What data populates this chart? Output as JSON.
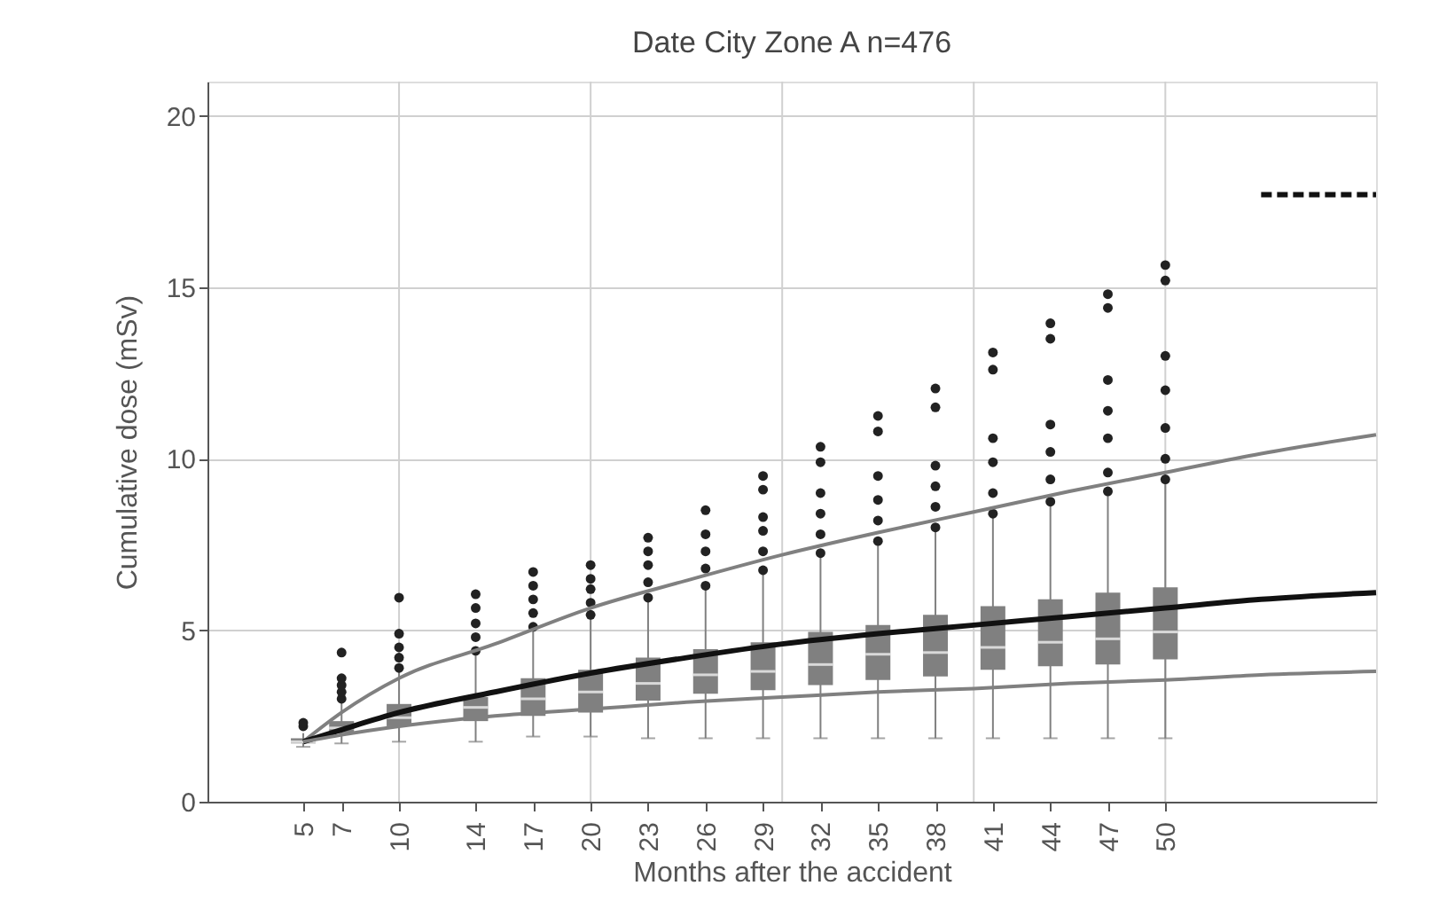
{
  "chart_data": {
    "type": "box",
    "title": "Date City Zone A n=476",
    "xlabel": "Months after the accident",
    "ylabel": "Cumulative dose (mSv)",
    "x": [
      5,
      7,
      10,
      14,
      17,
      20,
      23,
      26,
      29,
      32,
      35,
      38,
      41,
      44,
      47,
      50
    ],
    "xlim": [
      0,
      61
    ],
    "xticks": [
      5,
      7,
      10,
      14,
      17,
      20,
      23,
      26,
      29,
      32,
      35,
      38,
      41,
      44,
      47,
      50
    ],
    "ylim": [
      0,
      21
    ],
    "yticks": [
      0,
      5,
      10,
      15,
      20
    ],
    "grid": "y",
    "series": [
      {
        "color": "#808080",
        "boxes": [
          {
            "low": 1.6,
            "q1": 1.7,
            "median": 1.75,
            "q3": 1.85,
            "high": 2.0,
            "outliers": [
              2.2,
              2.3
            ]
          },
          {
            "low": 1.7,
            "q1": 2.0,
            "median": 2.15,
            "q3": 2.35,
            "high": 2.9,
            "outliers": [
              3.0,
              3.2,
              3.4,
              3.6,
              4.35
            ]
          },
          {
            "low": 1.75,
            "q1": 2.2,
            "median": 2.45,
            "q3": 2.85,
            "high": 3.8,
            "outliers": [
              3.9,
              4.2,
              4.5,
              4.9,
              5.95
            ]
          },
          {
            "low": 1.75,
            "q1": 2.35,
            "median": 2.75,
            "q3": 3.05,
            "high": 4.3,
            "outliers": [
              4.4,
              4.8,
              5.2,
              5.65,
              6.05
            ]
          },
          {
            "low": 1.9,
            "q1": 2.5,
            "median": 3.0,
            "q3": 3.6,
            "high": 5.0,
            "outliers": [
              5.1,
              5.5,
              5.9,
              6.3,
              6.7
            ]
          },
          {
            "low": 1.9,
            "q1": 2.6,
            "median": 3.2,
            "q3": 3.85,
            "high": 5.35,
            "outliers": [
              5.45,
              5.8,
              6.2,
              6.5,
              6.9
            ]
          },
          {
            "low": 1.85,
            "q1": 2.95,
            "median": 3.45,
            "q3": 4.2,
            "high": 5.85,
            "outliers": [
              5.95,
              6.4,
              6.9,
              7.3,
              7.7
            ]
          },
          {
            "low": 1.85,
            "q1": 3.15,
            "median": 3.7,
            "q3": 4.45,
            "high": 6.2,
            "outliers": [
              6.3,
              6.8,
              7.3,
              7.8,
              8.5
            ]
          },
          {
            "low": 1.85,
            "q1": 3.25,
            "median": 3.8,
            "q3": 4.65,
            "high": 6.65,
            "outliers": [
              6.75,
              7.3,
              7.9,
              8.3,
              9.1,
              9.5
            ]
          },
          {
            "low": 1.85,
            "q1": 3.4,
            "median": 4.0,
            "q3": 4.95,
            "high": 7.15,
            "outliers": [
              7.25,
              7.8,
              8.4,
              9.0,
              9.9,
              10.35
            ]
          },
          {
            "low": 1.85,
            "q1": 3.55,
            "median": 4.3,
            "q3": 5.15,
            "high": 7.5,
            "outliers": [
              7.6,
              8.2,
              8.8,
              9.5,
              10.8,
              11.25
            ]
          },
          {
            "low": 1.85,
            "q1": 3.65,
            "median": 4.35,
            "q3": 5.45,
            "high": 7.9,
            "outliers": [
              8.0,
              8.6,
              9.2,
              9.8,
              11.5,
              12.05
            ]
          },
          {
            "low": 1.85,
            "q1": 3.85,
            "median": 4.5,
            "q3": 5.7,
            "high": 8.3,
            "outliers": [
              8.4,
              9.0,
              9.9,
              10.6,
              12.6,
              13.1
            ]
          },
          {
            "low": 1.85,
            "q1": 3.95,
            "median": 4.65,
            "q3": 5.9,
            "high": 8.65,
            "outliers": [
              8.75,
              9.4,
              10.2,
              11.0,
              13.5,
              13.95
            ]
          },
          {
            "low": 1.85,
            "q1": 4.0,
            "median": 4.75,
            "q3": 6.1,
            "high": 8.95,
            "outliers": [
              9.05,
              9.6,
              10.6,
              11.4,
              12.3,
              14.4,
              14.8
            ]
          },
          {
            "low": 1.85,
            "q1": 4.15,
            "median": 4.95,
            "q3": 6.25,
            "high": 9.3,
            "outliers": [
              9.4,
              10.0,
              10.9,
              12.0,
              13.0,
              15.2,
              15.65
            ]
          }
        ]
      },
      {
        "type": "line",
        "color": "#808080",
        "x": [
          5,
          7,
          10,
          15,
          20,
          25,
          30,
          35,
          40,
          45,
          50,
          55,
          61
        ],
        "values": [
          1.75,
          2.6,
          3.6,
          4.6,
          5.65,
          6.45,
          7.2,
          7.85,
          8.45,
          9.05,
          9.6,
          10.15,
          10.7
        ]
      },
      {
        "type": "line",
        "color": "#111111",
        "x": [
          5,
          7,
          10,
          15,
          20,
          25,
          30,
          35,
          40,
          45,
          50,
          55,
          61
        ],
        "values": [
          1.75,
          2.1,
          2.6,
          3.2,
          3.75,
          4.2,
          4.6,
          4.9,
          5.15,
          5.4,
          5.65,
          5.9,
          6.1
        ]
      },
      {
        "type": "line",
        "color": "#808080",
        "x": [
          5,
          7,
          10,
          15,
          20,
          25,
          30,
          35,
          40,
          45,
          50,
          55,
          61
        ],
        "values": [
          1.75,
          1.95,
          2.2,
          2.5,
          2.7,
          2.9,
          3.05,
          3.2,
          3.3,
          3.45,
          3.55,
          3.7,
          3.8
        ]
      },
      {
        "type": "line",
        "color": "#111111",
        "line_style": "dashed",
        "x": [
          55,
          61
        ],
        "values": [
          17.7,
          17.7
        ]
      }
    ],
    "ref_lines": [
      {
        "axis": "x",
        "value": 10,
        "color": "#d0d0d0"
      },
      {
        "axis": "x",
        "value": 20,
        "color": "#d0d0d0"
      },
      {
        "axis": "x",
        "value": 30,
        "color": "#d0d0d0"
      },
      {
        "axis": "x",
        "value": 40,
        "color": "#d0d0d0"
      },
      {
        "axis": "x",
        "value": 50,
        "color": "#d0d0d0"
      }
    ]
  }
}
